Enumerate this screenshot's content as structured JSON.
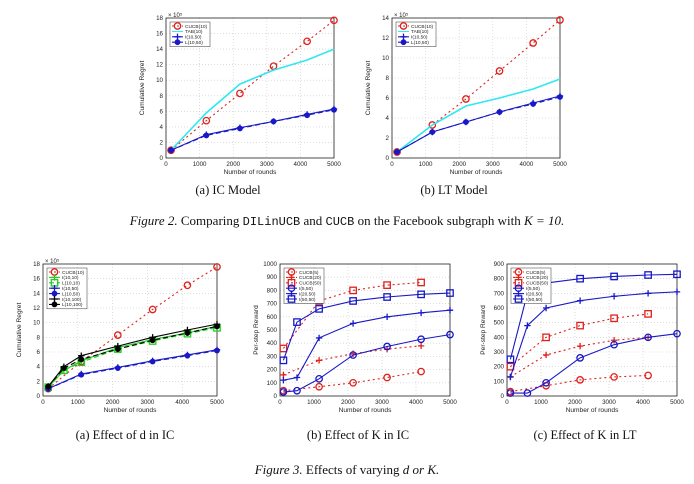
{
  "figure2": {
    "label": "Figure 2.",
    "pre": "Comparing",
    "code1": "DILinUCB",
    "mid": "and",
    "code2": "CUCB",
    "post": "on the Facebook subgraph with",
    "math": "K = 10."
  },
  "figure3": {
    "label": "Figure 3.",
    "text": "Effects of varying",
    "math": "d or K."
  },
  "captions": {
    "p1": "(a) IC Model",
    "p2": "(b) LT Model",
    "p3": "(a) Effect of d in IC",
    "p4": "(b) Effect of K in IC",
    "p5": "(c) Effect of K in LT"
  },
  "chart_data": [
    {
      "id": "fig2a",
      "type": "line",
      "xlabel": "Number of rounds",
      "ylabel": "Cumulative Regret",
      "xlim": [
        0,
        5000
      ],
      "ylim": [
        0,
        18
      ],
      "y_scale_label": "× 10⁵",
      "x_ticks": [
        0,
        1000,
        2000,
        3000,
        4000,
        5000
      ],
      "y_ticks": [
        0,
        2,
        4,
        6,
        8,
        10,
        12,
        14,
        16,
        18
      ],
      "legend_position": "top-left",
      "grid": true,
      "series": [
        {
          "name": "CUCB(10)",
          "color": "#e0201b",
          "dash": "2,3",
          "marker": "circle",
          "x": [
            150,
            1200,
            2200,
            3200,
            4200,
            5000
          ],
          "y": [
            1.0,
            4.8,
            8.3,
            11.8,
            15.0,
            17.7
          ]
        },
        {
          "name": "TAB(10)",
          "color": "#2fe8f0",
          "dash": "",
          "marker": "none",
          "x": [
            150,
            1200,
            2200,
            3200,
            4200,
            5000
          ],
          "y": [
            1.0,
            5.8,
            9.5,
            11.3,
            12.6,
            14.0
          ]
        },
        {
          "name": "I(10,50)",
          "color": "#1818c8",
          "dash": "",
          "marker": "plus",
          "x": [
            150,
            1200,
            2200,
            3200,
            4200,
            5000
          ],
          "y": [
            1.0,
            3.0,
            3.9,
            4.7,
            5.6,
            6.3
          ]
        },
        {
          "name": "L(10,50)",
          "color": "#1818c8",
          "dash": "5,3",
          "marker": "dot",
          "x": [
            150,
            1200,
            2200,
            3200,
            4200,
            5000
          ],
          "y": [
            1.0,
            2.9,
            3.8,
            4.7,
            5.5,
            6.2
          ]
        }
      ]
    },
    {
      "id": "fig2b",
      "type": "line",
      "xlabel": "Number of rounds",
      "ylabel": "Cumulative Regret",
      "xlim": [
        0,
        5000
      ],
      "ylim": [
        0,
        14
      ],
      "y_scale_label": "× 10⁵",
      "x_ticks": [
        0,
        1000,
        2000,
        3000,
        4000,
        5000
      ],
      "y_ticks": [
        0,
        2,
        4,
        6,
        8,
        10,
        12,
        14
      ],
      "legend_position": "top-left",
      "grid": true,
      "series": [
        {
          "name": "CUCB(10)",
          "color": "#e0201b",
          "dash": "2,3",
          "marker": "circle",
          "x": [
            150,
            1200,
            2200,
            3200,
            4200,
            5000
          ],
          "y": [
            0.6,
            3.3,
            5.9,
            8.7,
            11.5,
            13.8
          ]
        },
        {
          "name": "TAB(10)",
          "color": "#2fe8f0",
          "dash": "",
          "marker": "none",
          "x": [
            150,
            1200,
            2200,
            3200,
            4200,
            5000
          ],
          "y": [
            0.6,
            3.3,
            5.2,
            6.0,
            6.9,
            7.9
          ]
        },
        {
          "name": "I(10,50)",
          "color": "#1818c8",
          "dash": "",
          "marker": "plus",
          "x": [
            150,
            1200,
            2200,
            3200,
            4200,
            5000
          ],
          "y": [
            0.6,
            2.6,
            3.6,
            4.6,
            5.5,
            6.2
          ]
        },
        {
          "name": "L(10,50)",
          "color": "#1818c8",
          "dash": "5,3",
          "marker": "dot",
          "x": [
            150,
            1200,
            2200,
            3200,
            4200,
            5000
          ],
          "y": [
            0.6,
            2.6,
            3.6,
            4.6,
            5.4,
            6.1
          ]
        }
      ]
    },
    {
      "id": "fig3a",
      "type": "line",
      "xlabel": "Number of rounds",
      "ylabel": "Cumulative Regret",
      "xlim": [
        0,
        5000
      ],
      "ylim": [
        0,
        18
      ],
      "y_scale_label": "× 10⁵",
      "x_ticks": [
        0,
        1000,
        2000,
        3000,
        4000,
        5000
      ],
      "y_ticks": [
        0,
        2,
        4,
        6,
        8,
        10,
        12,
        14,
        16,
        18
      ],
      "legend_position": "top-left",
      "grid": true,
      "series": [
        {
          "name": "CUCB(10)",
          "color": "#e0201b",
          "dash": "2,3",
          "marker": "circle",
          "x": [
            150,
            1100,
            2150,
            3150,
            4150,
            5000
          ],
          "y": [
            1.0,
            4.7,
            8.3,
            11.8,
            15.1,
            17.6
          ]
        },
        {
          "name": "I(10,10)",
          "color": "#22cc22",
          "dash": "",
          "marker": "plus",
          "x": [
            150,
            600,
            1100,
            2150,
            3150,
            4150,
            5000
          ],
          "y": [
            1.2,
            3.5,
            4.8,
            6.6,
            7.7,
            8.6,
            9.5
          ]
        },
        {
          "name": "L(10,10)",
          "color": "#22cc22",
          "dash": "5,3",
          "marker": "square",
          "x": [
            150,
            600,
            1100,
            2150,
            3150,
            4150,
            5000
          ],
          "y": [
            1.2,
            3.5,
            4.6,
            6.4,
            7.5,
            8.5,
            9.3
          ]
        },
        {
          "name": "I(10,50)",
          "color": "#1818c8",
          "dash": "",
          "marker": "plus",
          "x": [
            150,
            1100,
            2150,
            3150,
            4150,
            5000
          ],
          "y": [
            1.0,
            3.0,
            3.9,
            4.8,
            5.6,
            6.3
          ]
        },
        {
          "name": "L(10,50)",
          "color": "#1818c8",
          "dash": "5,3",
          "marker": "dot",
          "x": [
            150,
            1100,
            2150,
            3150,
            4150,
            5000
          ],
          "y": [
            1.0,
            2.9,
            3.8,
            4.7,
            5.5,
            6.2
          ]
        },
        {
          "name": "I(10,100)",
          "color": "#000000",
          "dash": "",
          "marker": "plus",
          "x": [
            150,
            600,
            1100,
            2150,
            3150,
            4150,
            5000
          ],
          "y": [
            1.3,
            4.0,
            5.5,
            6.8,
            8.0,
            9.0,
            9.8
          ]
        },
        {
          "name": "L(10,100)",
          "color": "#000000",
          "dash": "5,3",
          "marker": "dot",
          "x": [
            150,
            600,
            1100,
            2150,
            3150,
            4150,
            5000
          ],
          "y": [
            1.3,
            3.8,
            5.0,
            6.4,
            7.6,
            8.6,
            9.5
          ]
        }
      ]
    },
    {
      "id": "fig3b",
      "type": "line",
      "xlabel": "Number of rounds",
      "ylabel": "Per-step Reward",
      "xlim": [
        0,
        5000
      ],
      "ylim": [
        0,
        1000
      ],
      "y_scale_label": "",
      "x_ticks": [
        0,
        1000,
        2000,
        3000,
        4000,
        5000
      ],
      "y_ticks": [
        0,
        100,
        200,
        300,
        400,
        500,
        600,
        700,
        800,
        900,
        1000
      ],
      "legend_position": "top-left",
      "grid": true,
      "series": [
        {
          "name": "CUCB(5)",
          "color": "#e0201b",
          "dash": "2,3",
          "marker": "circle",
          "x": [
            100,
            1150,
            2150,
            3150,
            4150
          ],
          "y": [
            40,
            70,
            100,
            140,
            185
          ]
        },
        {
          "name": "CUCB(20)",
          "color": "#e0201b",
          "dash": "2,3",
          "marker": "plus",
          "x": [
            100,
            1150,
            2150,
            3150,
            4150
          ],
          "y": [
            160,
            270,
            320,
            355,
            380
          ]
        },
        {
          "name": "CUCB(50)",
          "color": "#e0201b",
          "dash": "2,3",
          "marker": "square",
          "x": [
            100,
            1150,
            2150,
            3150,
            4150
          ],
          "y": [
            360,
            720,
            800,
            840,
            860
          ]
        },
        {
          "name": "I(5,50)",
          "color": "#1818c8",
          "dash": "",
          "marker": "circle",
          "x": [
            100,
            500,
            1150,
            2150,
            3150,
            4150,
            5000
          ],
          "y": [
            30,
            40,
            130,
            310,
            375,
            430,
            465
          ]
        },
        {
          "name": "I(20,50)",
          "color": "#1818c8",
          "dash": "",
          "marker": "plus",
          "x": [
            100,
            500,
            1150,
            2150,
            3150,
            4150,
            5000
          ],
          "y": [
            120,
            140,
            440,
            550,
            600,
            630,
            650
          ]
        },
        {
          "name": "I(50,50)",
          "color": "#1818c8",
          "dash": "",
          "marker": "square",
          "x": [
            100,
            500,
            1150,
            2150,
            3150,
            4150,
            5000
          ],
          "y": [
            270,
            560,
            660,
            720,
            750,
            770,
            780
          ]
        }
      ]
    },
    {
      "id": "fig3c",
      "type": "line",
      "xlabel": "Number of rounds",
      "ylabel": "Per-step Reward",
      "xlim": [
        0,
        5000
      ],
      "ylim": [
        0,
        900
      ],
      "y_scale_label": "",
      "x_ticks": [
        0,
        1000,
        2000,
        3000,
        4000,
        5000
      ],
      "y_ticks": [
        0,
        100,
        200,
        300,
        400,
        500,
        600,
        700,
        800,
        900
      ],
      "legend_position": "top-left",
      "grid": true,
      "series": [
        {
          "name": "CUCB(5)",
          "color": "#e0201b",
          "dash": "2,3",
          "marker": "circle",
          "x": [
            100,
            1150,
            2150,
            3150,
            4150
          ],
          "y": [
            30,
            70,
            110,
            130,
            140
          ]
        },
        {
          "name": "CUCB(20)",
          "color": "#e0201b",
          "dash": "2,3",
          "marker": "plus",
          "x": [
            100,
            1150,
            2150,
            3150,
            4150
          ],
          "y": [
            130,
            280,
            340,
            380,
            400
          ]
        },
        {
          "name": "CUCB(50)",
          "color": "#e0201b",
          "dash": "2,3",
          "marker": "square",
          "x": [
            100,
            1150,
            2150,
            3150,
            4150
          ],
          "y": [
            200,
            400,
            480,
            530,
            560
          ]
        },
        {
          "name": "I(5,50)",
          "color": "#1818c8",
          "dash": "",
          "marker": "circle",
          "x": [
            100,
            600,
            1150,
            2150,
            3150,
            4150,
            5000
          ],
          "y": [
            20,
            20,
            90,
            260,
            350,
            400,
            425
          ]
        },
        {
          "name": "I(20,50)",
          "color": "#1818c8",
          "dash": "",
          "marker": "plus",
          "x": [
            100,
            600,
            1150,
            2150,
            3150,
            4150,
            5000
          ],
          "y": [
            130,
            480,
            600,
            650,
            680,
            700,
            710
          ]
        },
        {
          "name": "I(50,50)",
          "color": "#1818c8",
          "dash": "",
          "marker": "square",
          "x": [
            100,
            600,
            1150,
            2150,
            3150,
            4150,
            5000
          ],
          "y": [
            250,
            700,
            770,
            800,
            815,
            825,
            830
          ]
        }
      ]
    }
  ]
}
